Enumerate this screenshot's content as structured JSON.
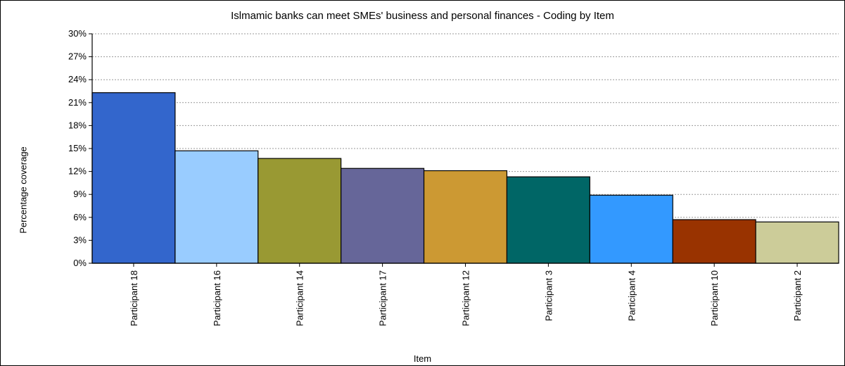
{
  "chart_data": {
    "type": "bar",
    "title": "Islmamic banks can meet SMEs' business and personal finances - Coding by Item",
    "xlabel": "Item",
    "ylabel": "Percentage coverage",
    "ylim": [
      0,
      30
    ],
    "yticks": [
      "0%",
      "3%",
      "6%",
      "9%",
      "12%",
      "15%",
      "18%",
      "21%",
      "24%",
      "27%",
      "30%"
    ],
    "grid": true,
    "categories": [
      "Participant 18",
      "Participant 16",
      "Participant 14",
      "Participant 17",
      "Participant 12",
      "Participant 3",
      "Participant 4",
      "Participant 10",
      "Participant 2"
    ],
    "values": [
      22.3,
      14.7,
      13.7,
      12.4,
      12.1,
      11.3,
      8.9,
      5.7,
      5.4
    ],
    "colors": [
      "#3366CC",
      "#99CCFF",
      "#999933",
      "#666699",
      "#CC9933",
      "#006666",
      "#3399FF",
      "#993300",
      "#CCCC99"
    ]
  }
}
